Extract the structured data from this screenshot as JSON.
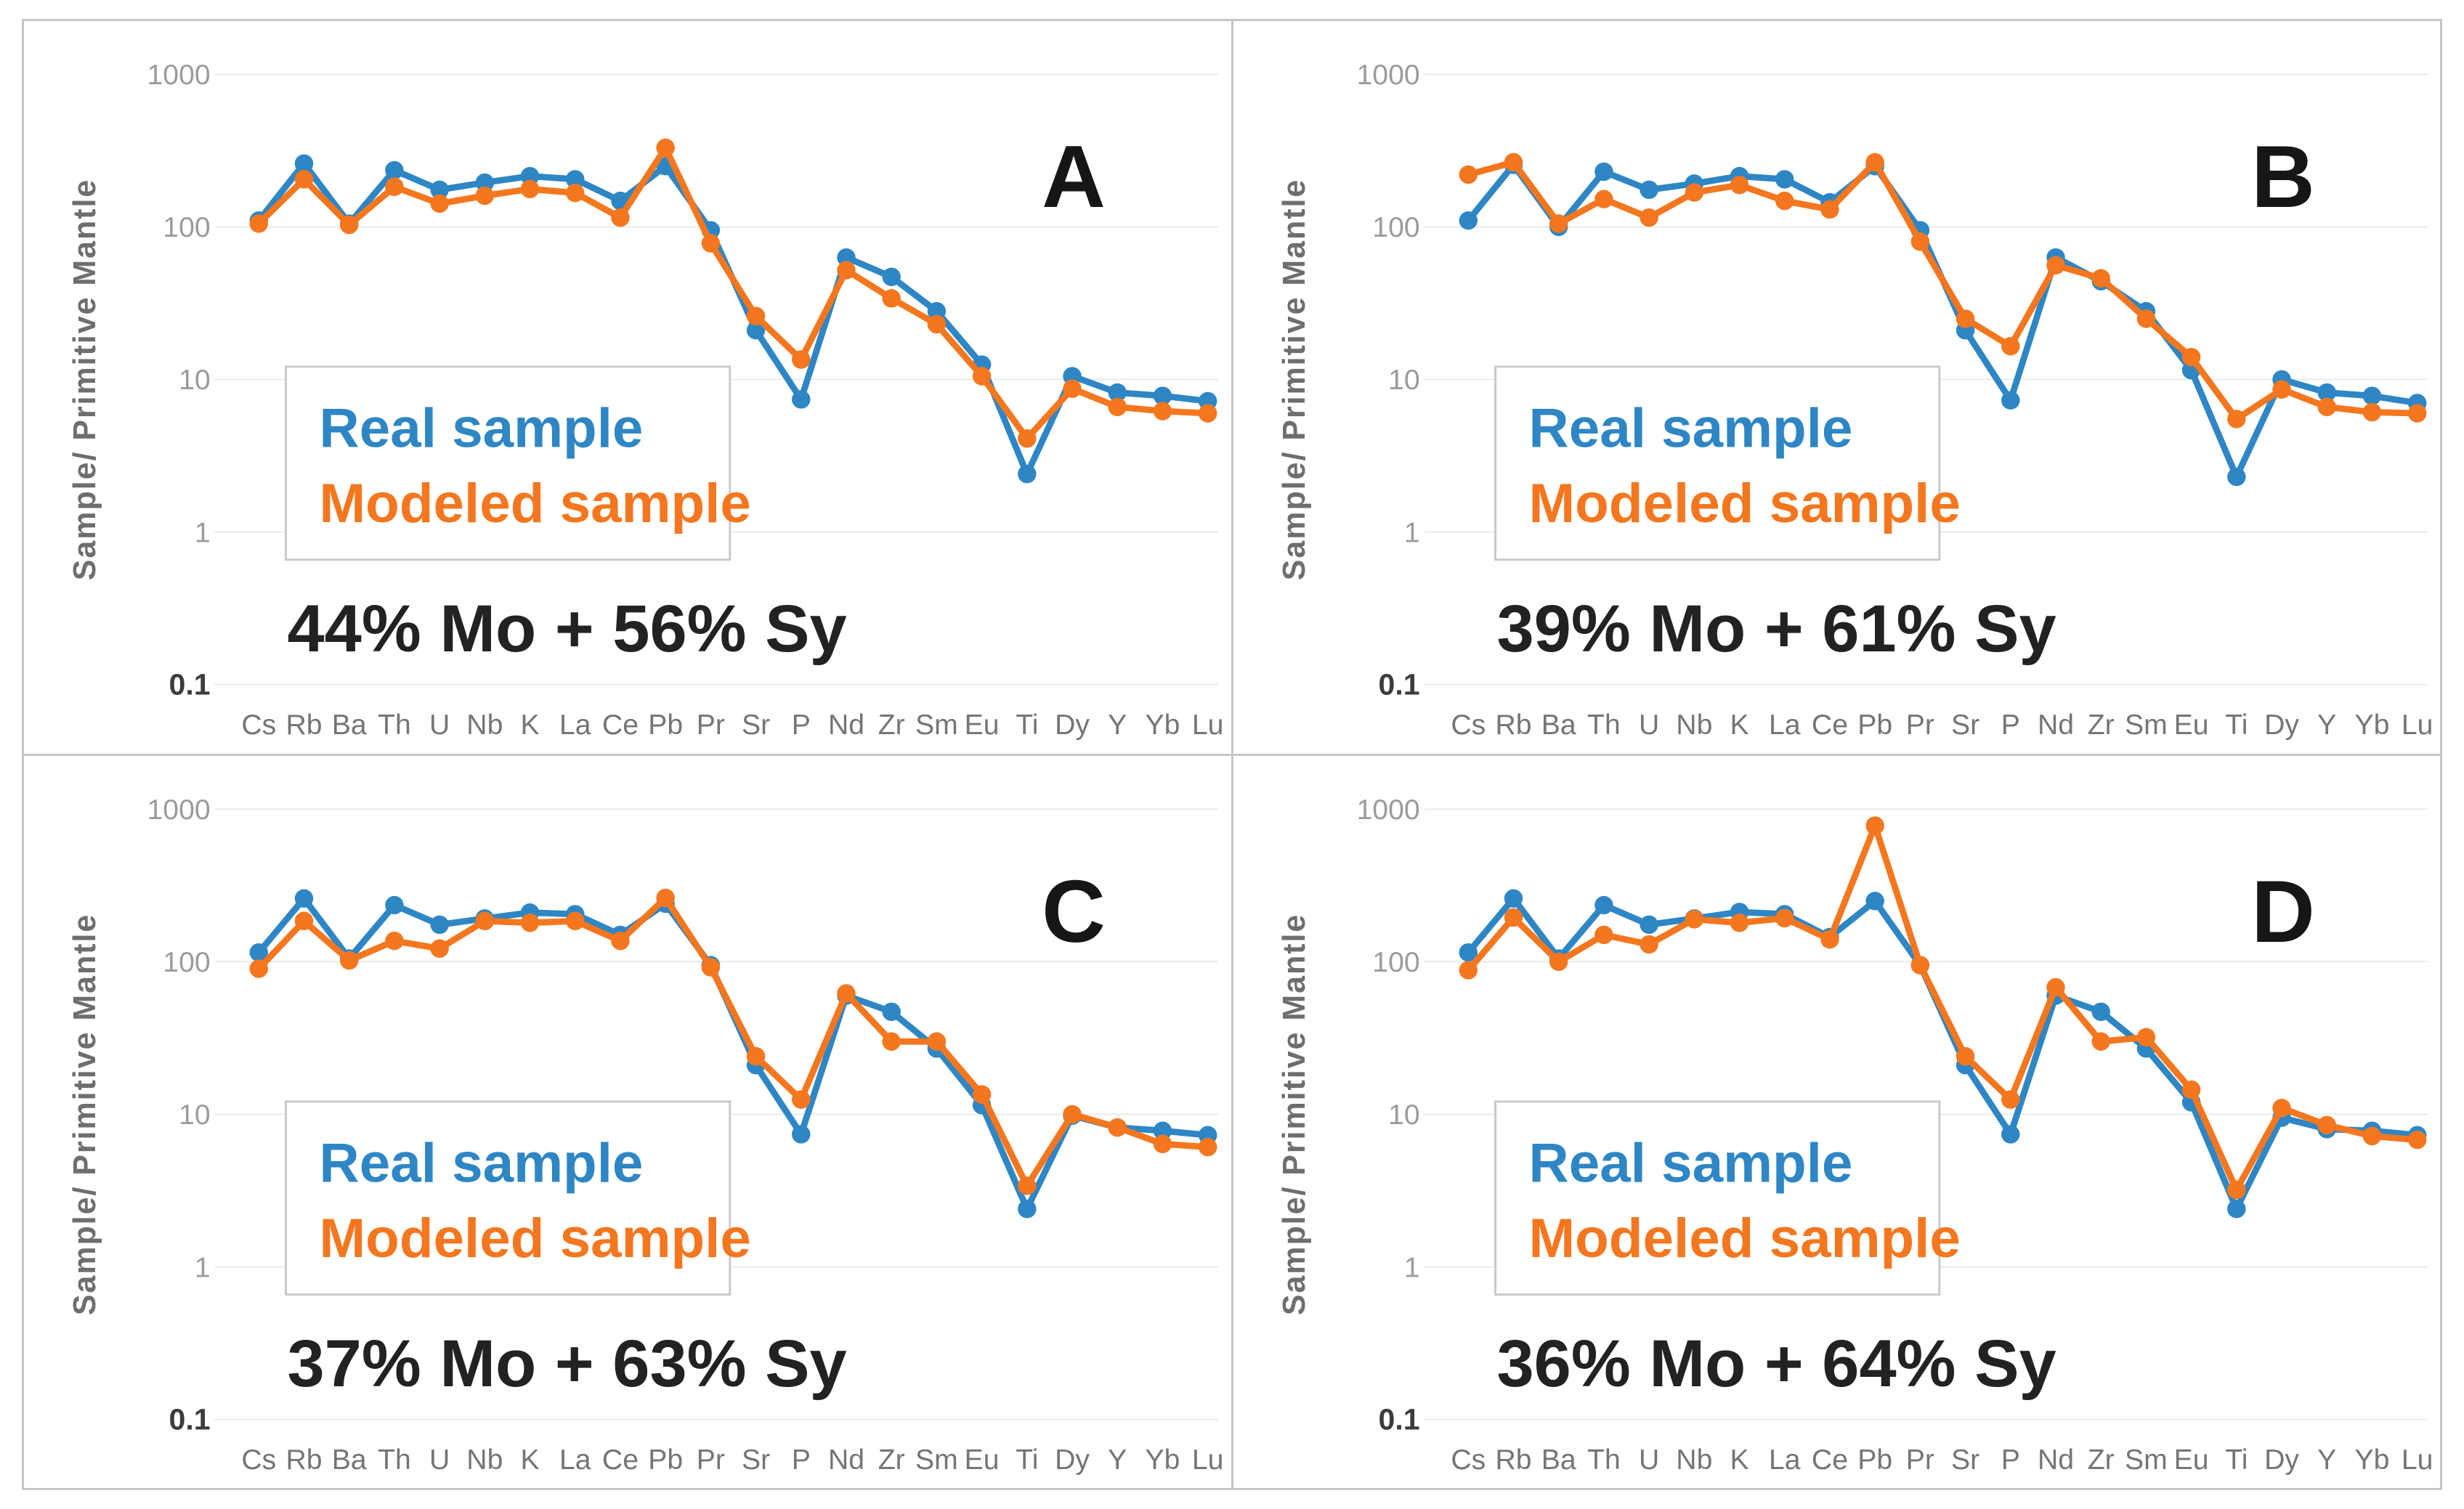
{
  "figure": {
    "background": "#ffffff",
    "border_color": "#c6c6c6",
    "real_color": "#2e86c5",
    "modeled_color": "#f4771f"
  },
  "axis": {
    "y_title": "Sample/ Primitive Mantle",
    "y_tick_labels": [
      "1000",
      "100",
      "10",
      "1",
      "0.1"
    ],
    "y_tick_values": [
      1000,
      100,
      10,
      1,
      0.1
    ]
  },
  "chart_data": [
    {
      "type": "line",
      "panel_label": "A",
      "mix_label": "44% Mo + 56% Sy",
      "ylabel": "Sample/ Primitive Mantle",
      "yscale": "log",
      "ylim": [
        0.1,
        1000
      ],
      "grid": true,
      "legend_position": "left-middle",
      "categories": [
        "Cs",
        "Rb",
        "Ba",
        "Th",
        "U",
        "Nb",
        "K",
        "La",
        "Ce",
        "Pb",
        "Pr",
        "Sr",
        "P",
        "Nd",
        "Zr",
        "Sm",
        "Eu",
        "Ti",
        "Dy",
        "Y",
        "Yb",
        "Lu"
      ],
      "series": [
        {
          "name": "Real sample",
          "color": "#2e86c5",
          "values": [
            110,
            260,
            105,
            235,
            175,
            195,
            215,
            205,
            148,
            250,
            95,
            21,
            7.4,
            63,
            47,
            28,
            12.5,
            2.4,
            10.5,
            8.2,
            7.8,
            7.2
          ]
        },
        {
          "name": "Modeled sample",
          "color": "#f4771f",
          "values": [
            105,
            205,
            103,
            183,
            142,
            160,
            177,
            167,
            115,
            330,
            78,
            26,
            13.5,
            52,
            34,
            23,
            10.5,
            4.1,
            8.7,
            6.6,
            6.2,
            6.0
          ]
        }
      ]
    },
    {
      "type": "line",
      "panel_label": "B",
      "mix_label": "39% Mo + 61% Sy",
      "ylabel": "Sample/ Primitive Mantle",
      "yscale": "log",
      "ylim": [
        0.1,
        1000
      ],
      "grid": true,
      "legend_position": "left-middle",
      "categories": [
        "Cs",
        "Rb",
        "Ba",
        "Th",
        "U",
        "Nb",
        "K",
        "La",
        "Ce",
        "Pb",
        "Pr",
        "Sr",
        "P",
        "Nd",
        "Zr",
        "Sm",
        "Eu",
        "Ti",
        "Dy",
        "Y",
        "Yb",
        "Lu"
      ],
      "series": [
        {
          "name": "Real sample",
          "color": "#2e86c5",
          "values": [
            110,
            255,
            100,
            230,
            175,
            192,
            215,
            205,
            145,
            250,
            95,
            21,
            7.3,
            63,
            44,
            28,
            11.5,
            2.3,
            10,
            8.2,
            7.8,
            7.0
          ]
        },
        {
          "name": "Modeled sample",
          "color": "#f4771f",
          "values": [
            220,
            265,
            105,
            152,
            115,
            168,
            188,
            148,
            130,
            265,
            80,
            25,
            16.5,
            56,
            46,
            25,
            14,
            5.5,
            8.6,
            6.6,
            6.1,
            6.0
          ]
        }
      ]
    },
    {
      "type": "line",
      "panel_label": "C",
      "mix_label": "37% Mo + 63% Sy",
      "ylabel": "Sample/ Primitive Mantle",
      "yscale": "log",
      "ylim": [
        0.1,
        1000
      ],
      "grid": true,
      "legend_position": "left-middle",
      "categories": [
        "Cs",
        "Rb",
        "Ba",
        "Th",
        "U",
        "Nb",
        "K",
        "La",
        "Ce",
        "Pb",
        "Pr",
        "Sr",
        "P",
        "Nd",
        "Zr",
        "Sm",
        "Eu",
        "Ti",
        "Dy",
        "Y",
        "Yb",
        "Lu"
      ],
      "series": [
        {
          "name": "Real sample",
          "color": "#2e86c5",
          "values": [
            115,
            260,
            105,
            235,
            175,
            192,
            210,
            205,
            150,
            240,
            95,
            21,
            7.4,
            60,
            47,
            27,
            11.5,
            2.4,
            9.8,
            8.2,
            7.8,
            7.3
          ]
        },
        {
          "name": "Modeled sample",
          "color": "#f4771f",
          "values": [
            90,
            185,
            102,
            137,
            122,
            185,
            180,
            185,
            137,
            262,
            92,
            24,
            12.5,
            62,
            30,
            30,
            13.5,
            3.4,
            10,
            8.2,
            6.4,
            6.1
          ]
        }
      ]
    },
    {
      "type": "line",
      "panel_label": "D",
      "mix_label": "36% Mo + 64% Sy",
      "ylabel": "Sample/ Primitive Mantle",
      "yscale": "log",
      "ylim": [
        0.1,
        1000
      ],
      "grid": true,
      "legend_position": "left-middle",
      "categories": [
        "Cs",
        "Rb",
        "Ba",
        "Th",
        "U",
        "Nb",
        "K",
        "La",
        "Ce",
        "Pb",
        "Pr",
        "Sr",
        "P",
        "Nd",
        "Zr",
        "Sm",
        "Eu",
        "Ti",
        "Dy",
        "Y",
        "Yb",
        "Lu"
      ],
      "series": [
        {
          "name": "Real sample",
          "color": "#2e86c5",
          "values": [
            115,
            260,
            105,
            235,
            175,
            192,
            212,
            205,
            145,
            250,
            95,
            21,
            7.4,
            60,
            47,
            27,
            12,
            2.4,
            9.5,
            8.0,
            7.8,
            7.3
          ]
        },
        {
          "name": "Modeled sample",
          "color": "#f4771f",
          "values": [
            88,
            195,
            100,
            150,
            130,
            190,
            180,
            193,
            140,
            780,
            95,
            24,
            12.5,
            68,
            30,
            32,
            14.5,
            3.2,
            11,
            8.5,
            7.2,
            6.8
          ]
        }
      ]
    }
  ]
}
